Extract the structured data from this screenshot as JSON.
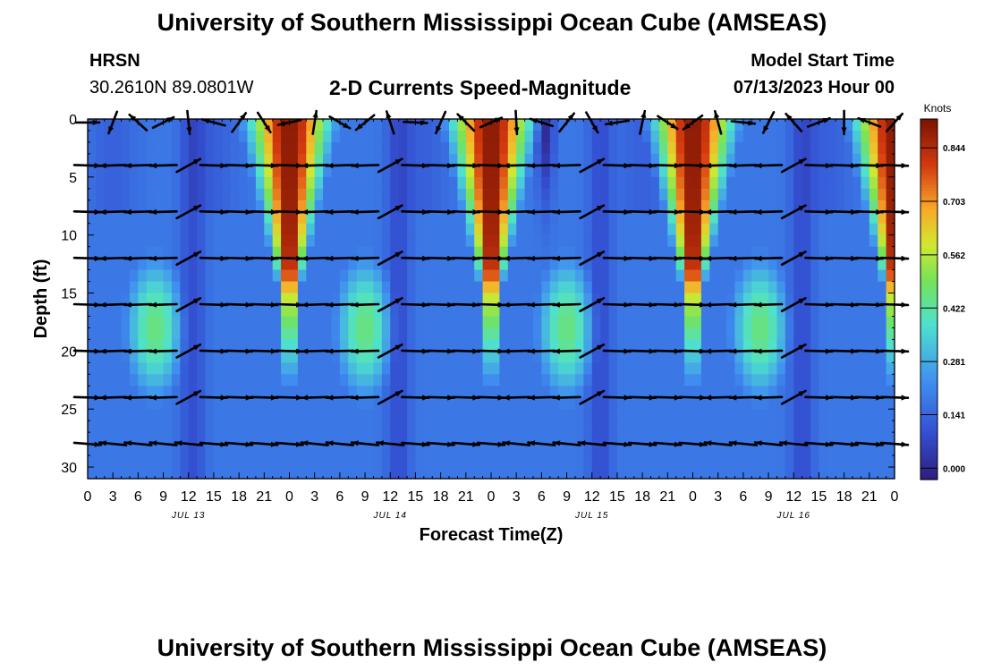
{
  "header": {
    "title": "University of Southern Mississippi Ocean Cube (AMSEAS)",
    "station": "HRSN",
    "coords": "30.2610N  89.0801W",
    "chart_title": "2-D Currents Speed-Magnitude",
    "start_label": "Model Start Time",
    "start_value": "07/13/2023 Hour 00"
  },
  "footer": {
    "title": "University of Southern Mississippi Ocean Cube (AMSEAS)"
  },
  "colors": {
    "low": "#2d1d7c",
    "mid_low": "#3f8ef0",
    "mid": "#74e35a",
    "mid_high": "#f9a92a",
    "high": "#7a1402"
  },
  "chart_data": {
    "type": "heatmap",
    "title": "2-D Currents Speed-Magnitude",
    "xlabel": "Forecast Time(Z)",
    "ylabel": "Depth (ft)",
    "xlim": [
      0,
      96
    ],
    "ylim": [
      31,
      0
    ],
    "x_tick_labels": [
      "0",
      "3",
      "6",
      "9",
      "12",
      "15",
      "18",
      "21",
      "0",
      "3",
      "6",
      "9",
      "12",
      "15",
      "18",
      "21",
      "0",
      "3",
      "6",
      "9",
      "12",
      "15",
      "18",
      "21",
      "0",
      "3",
      "6",
      "9",
      "12",
      "15",
      "18",
      "21",
      "0"
    ],
    "y_ticks": [
      0,
      5,
      10,
      15,
      20,
      25,
      30
    ],
    "y_tick_labels": [
      "0",
      "5",
      "10",
      "15",
      "20",
      "25",
      "30"
    ],
    "date_labels": [
      {
        "hour": 12,
        "text": "JUL 13"
      },
      {
        "hour": 36,
        "text": "JUL 14"
      },
      {
        "hour": 60,
        "text": "JUL 15"
      },
      {
        "hour": 84,
        "text": "JUL 16"
      }
    ],
    "colorbar": {
      "unit": "Knots",
      "range": [
        -0.03,
        0.92
      ],
      "ticks": [
        0.0,
        0.141,
        0.281,
        0.422,
        0.562,
        0.703,
        0.844
      ],
      "tick_labels": [
        "0.000",
        "0.141",
        "0.281",
        "0.422",
        "0.562",
        "0.703",
        "0.844"
      ]
    },
    "speed_field": {
      "surface_peaks_hours": [
        24,
        48,
        72,
        96
      ],
      "subsurface_peaks_hours": [
        8,
        33,
        57,
        80
      ],
      "max_knots": 0.9
    },
    "arrow_depths_ft": [
      0,
      4,
      8,
      12,
      16,
      20,
      24,
      28
    ],
    "arrow_hours_step": 3
  }
}
